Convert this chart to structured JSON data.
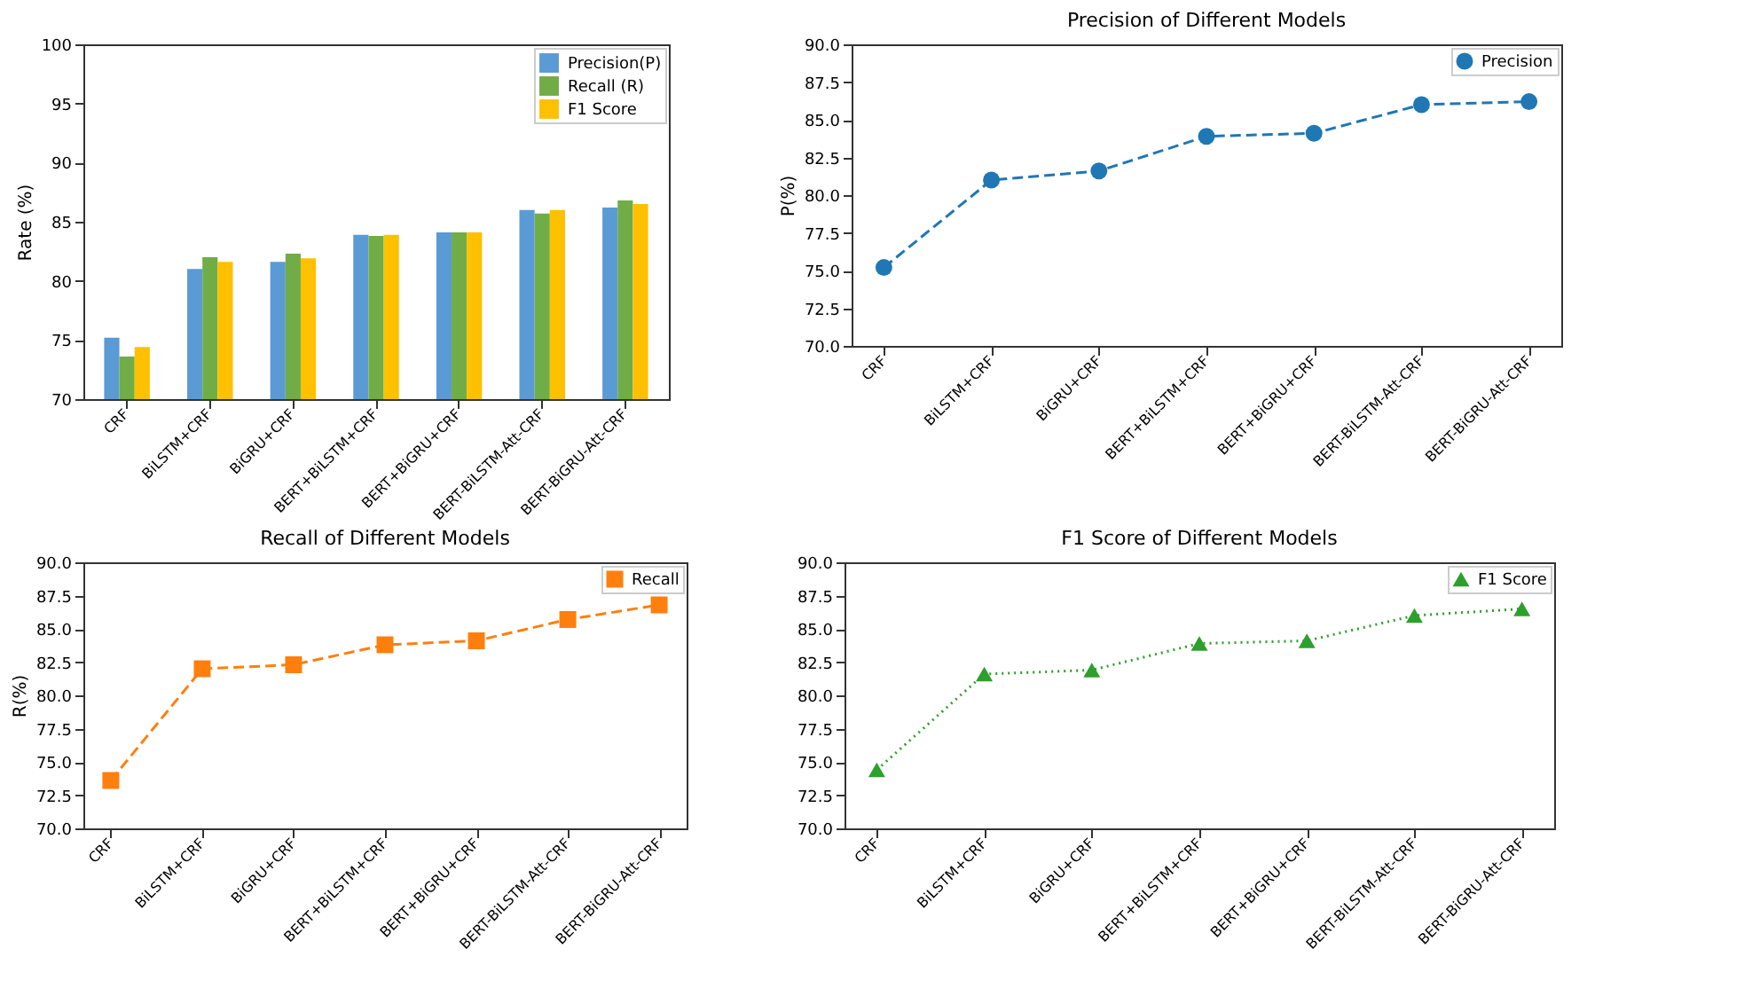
{
  "chart_data": [
    {
      "type": "bar",
      "ylabel": "Rate (%)",
      "categories": [
        "CRF",
        "BiLSTM+CRF",
        "BiGRU+CRF",
        "BERT+BiLSTM+CRF",
        "BERT+BiGRU+CRF",
        "BERT-BiLSTM-Att-CRF",
        "BERT-BiGRU-Att-CRF"
      ],
      "series": [
        {
          "name": "Precision(P)",
          "color": "#5b9bd5",
          "values": [
            75.2,
            81.0,
            81.6,
            83.9,
            84.1,
            86.0,
            86.2
          ]
        },
        {
          "name": "Recall (R)",
          "color": "#70ad47",
          "values": [
            73.6,
            82.0,
            82.3,
            83.8,
            84.1,
            85.7,
            86.8
          ]
        },
        {
          "name": "F1 Score",
          "color": "#ffc000",
          "values": [
            74.4,
            81.6,
            81.9,
            83.9,
            84.1,
            86.0,
            86.5
          ]
        }
      ],
      "ylim": [
        70,
        100
      ],
      "yticks": [
        70,
        75,
        80,
        85,
        90,
        95,
        100
      ],
      "legend": "top right",
      "grid": false
    },
    {
      "type": "line",
      "title": "Precision of Different Models",
      "ylabel": "P(%)",
      "categories": [
        "CRF",
        "BiLSTM+CRF",
        "BiGRU+CRF",
        "BERT+BiLSTM+CRF",
        "BERT+BiGRU+CRF",
        "BERT-BiLSTM-Att-CRF",
        "BERT-BiGRU-Att-CRF"
      ],
      "series": [
        {
          "name": "Precision",
          "color": "#1f77b4",
          "values": [
            75.2,
            81.0,
            81.6,
            83.9,
            84.1,
            86.0,
            86.2
          ]
        }
      ],
      "ylim": [
        70,
        90
      ],
      "yticks": [
        {
          "value": 70,
          "label": "70.0"
        },
        72.5,
        {
          "value": 75,
          "label": "75.0"
        },
        77.5,
        {
          "value": 80,
          "label": "80.0"
        },
        82.5,
        {
          "value": 85,
          "label": "85.0"
        },
        87.5,
        {
          "value": 90,
          "label": "90.0"
        }
      ],
      "marker": "circle",
      "line_style": "dashed",
      "legend": "top right",
      "grid": false
    },
    {
      "type": "line",
      "title": "Recall of Different Models",
      "ylabel": "R(%)",
      "categories": [
        "CRF",
        "BiLSTM+CRF",
        "BiGRU+CRF",
        "BERT+BiLSTM+CRF",
        "BERT+BiGRU+CRF",
        "BERT-BiLSTM-Att-CRF",
        "BERT-BiGRU-Att-CRF"
      ],
      "series": [
        {
          "name": "Recall",
          "color": "#ff7f0e",
          "values": [
            73.6,
            82.0,
            82.3,
            83.8,
            84.1,
            85.7,
            86.8
          ]
        }
      ],
      "ylim": [
        70,
        90
      ],
      "yticks": [
        {
          "value": 70,
          "label": "70.0"
        },
        72.5,
        {
          "value": 75,
          "label": "75.0"
        },
        77.5,
        {
          "value": 80,
          "label": "80.0"
        },
        82.5,
        {
          "value": 85,
          "label": "85.0"
        },
        87.5,
        {
          "value": 90,
          "label": "90.0"
        }
      ],
      "marker": "square",
      "line_style": "dashed",
      "legend": "top right",
      "grid": false
    },
    {
      "type": "line",
      "title": "F1 Score of Different Models",
      "categories": [
        "CRF",
        "BiLSTM+CRF",
        "BiGRU+CRF",
        "BERT+BiLSTM+CRF",
        "BERT+BiGRU+CRF",
        "BERT-BiLSTM-Att-CRF",
        "BERT-BiGRU-Att-CRF"
      ],
      "series": [
        {
          "name": "F1 Score",
          "color": "#2ca02c",
          "values": [
            74.4,
            81.6,
            81.9,
            83.9,
            84.1,
            86.0,
            86.5
          ]
        }
      ],
      "ylim": [
        70,
        90
      ],
      "yticks": [
        {
          "value": 70,
          "label": "70.0"
        },
        72.5,
        {
          "value": 75,
          "label": "75.0"
        },
        77.5,
        {
          "value": 80,
          "label": "80.0"
        },
        82.5,
        {
          "value": 85,
          "label": "85.0"
        },
        87.5,
        {
          "value": 90,
          "label": "90.0"
        }
      ],
      "marker": "triangle",
      "line_style": "dotted",
      "legend": "top right",
      "grid": false
    }
  ]
}
